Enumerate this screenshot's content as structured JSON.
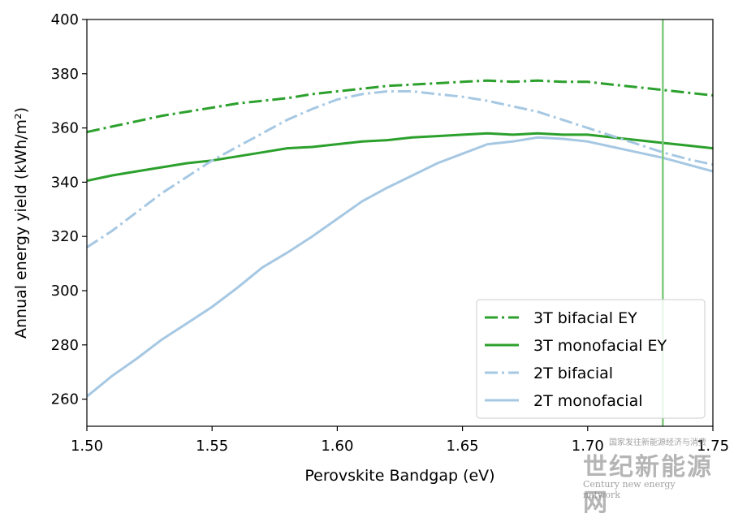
{
  "chart_data": {
    "type": "line",
    "xlabel": "Perovskite Bandgap (eV)",
    "ylabel": "Annual energy yield (kWh/m²)",
    "xlim": [
      1.5,
      1.75
    ],
    "ylim": [
      250,
      400
    ],
    "xticks": [
      "1.50",
      "1.55",
      "1.60",
      "1.65",
      "1.70",
      "1.75"
    ],
    "yticks": [
      "260",
      "280",
      "300",
      "320",
      "340",
      "360",
      "380",
      "400"
    ],
    "legend_position": "lower-right",
    "vline_x": 1.73,
    "vline_color": "#7fc97f",
    "series": [
      {
        "name": "3T bifacial EY",
        "color": "#2ca02c",
        "style": "dashdot",
        "x": [
          1.5,
          1.51,
          1.52,
          1.53,
          1.54,
          1.55,
          1.56,
          1.57,
          1.58,
          1.59,
          1.6,
          1.61,
          1.62,
          1.63,
          1.64,
          1.65,
          1.66,
          1.67,
          1.68,
          1.69,
          1.7,
          1.71,
          1.72,
          1.73,
          1.74,
          1.75
        ],
        "y": [
          358.5,
          360.5,
          362.5,
          364.5,
          366.0,
          367.5,
          369.0,
          370.0,
          371.0,
          372.5,
          373.5,
          374.5,
          375.5,
          376.0,
          376.5,
          377.0,
          377.5,
          377.0,
          377.5,
          377.0,
          377.0,
          376.0,
          375.0,
          374.0,
          373.0,
          372.0
        ]
      },
      {
        "name": "3T monofacial EY",
        "color": "#2ca02c",
        "style": "solid",
        "x": [
          1.5,
          1.51,
          1.52,
          1.53,
          1.54,
          1.55,
          1.56,
          1.57,
          1.58,
          1.59,
          1.6,
          1.61,
          1.62,
          1.63,
          1.64,
          1.65,
          1.66,
          1.67,
          1.68,
          1.69,
          1.7,
          1.71,
          1.72,
          1.73,
          1.74,
          1.75
        ],
        "y": [
          340.5,
          342.5,
          344.0,
          345.5,
          347.0,
          348.0,
          349.5,
          351.0,
          352.5,
          353.0,
          354.0,
          355.0,
          355.5,
          356.5,
          357.0,
          357.5,
          358.0,
          357.5,
          358.0,
          357.5,
          357.5,
          356.5,
          355.5,
          354.5,
          353.5,
          352.5
        ]
      },
      {
        "name": "2T bifacial",
        "color": "#a6c8e3",
        "style": "dashdot",
        "x": [
          1.5,
          1.51,
          1.52,
          1.53,
          1.54,
          1.55,
          1.56,
          1.57,
          1.58,
          1.59,
          1.6,
          1.61,
          1.62,
          1.63,
          1.64,
          1.65,
          1.66,
          1.67,
          1.68,
          1.69,
          1.7,
          1.71,
          1.72,
          1.73,
          1.74,
          1.75
        ],
        "y": [
          316.0,
          322.0,
          329.0,
          336.0,
          342.0,
          348.0,
          353.0,
          358.0,
          363.0,
          367.0,
          370.5,
          372.5,
          373.5,
          373.5,
          372.5,
          371.5,
          370.0,
          368.0,
          366.0,
          363.0,
          360.0,
          357.0,
          354.0,
          351.0,
          348.5,
          346.5
        ]
      },
      {
        "name": "2T monofacial",
        "color": "#a6c8e3",
        "style": "solid",
        "x": [
          1.5,
          1.51,
          1.52,
          1.53,
          1.54,
          1.55,
          1.56,
          1.57,
          1.58,
          1.59,
          1.6,
          1.61,
          1.62,
          1.63,
          1.64,
          1.65,
          1.66,
          1.67,
          1.68,
          1.69,
          1.7,
          1.71,
          1.72,
          1.73,
          1.74,
          1.75
        ],
        "y": [
          261.0,
          268.5,
          275.0,
          282.0,
          288.0,
          294.0,
          301.0,
          308.5,
          314.0,
          320.0,
          326.5,
          333.0,
          338.0,
          342.5,
          347.0,
          350.5,
          354.0,
          355.0,
          356.5,
          356.0,
          355.0,
          353.0,
          351.0,
          349.0,
          346.5,
          344.0
        ]
      }
    ]
  },
  "watermark": {
    "top_text": "国家发往新能源经济与消费",
    "main_text": "世纪新能源网",
    "sub_text": "Century new energy network"
  }
}
